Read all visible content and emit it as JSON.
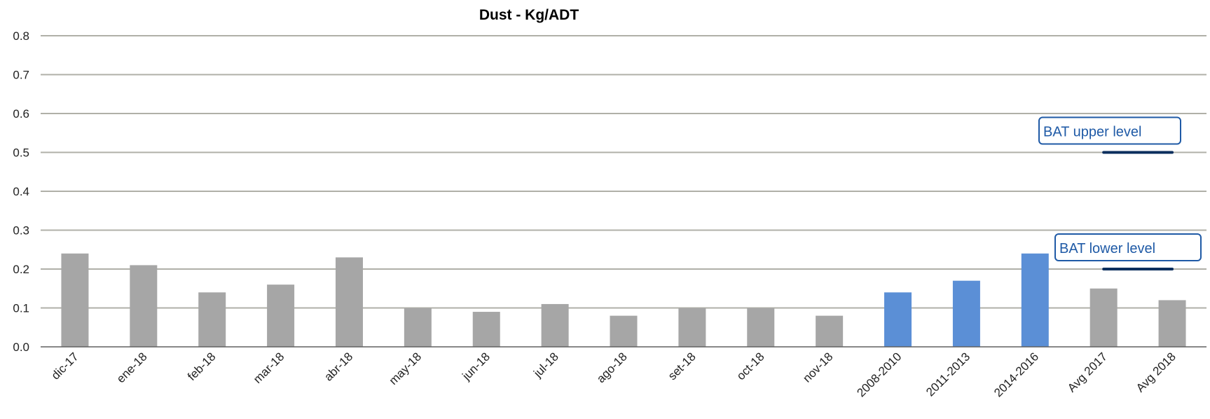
{
  "chart_data": {
    "type": "bar",
    "title": "Dust - Kg/ADT",
    "categories": [
      "dic-17",
      "ene-18",
      "feb-18",
      "mar-18",
      "abr-18",
      "may-18",
      "jun-18",
      "jul-18",
      "ago-18",
      "set-18",
      "oct-18",
      "nov-18",
      "2008-2010",
      "2011-2013",
      "2014-2016",
      "Avg 2017",
      "Avg 2018"
    ],
    "values": [
      0.24,
      0.21,
      0.14,
      0.16,
      0.23,
      0.1,
      0.09,
      0.11,
      0.08,
      0.1,
      0.1,
      0.08,
      0.14,
      0.17,
      0.24,
      0.15,
      0.12
    ],
    "bar_colors": [
      "#a6a6a6",
      "#a6a6a6",
      "#a6a6a6",
      "#a6a6a6",
      "#a6a6a6",
      "#a6a6a6",
      "#a6a6a6",
      "#a6a6a6",
      "#a6a6a6",
      "#a6a6a6",
      "#a6a6a6",
      "#a6a6a6",
      "#5b8fd6",
      "#5b8fd6",
      "#5b8fd6",
      "#a6a6a6",
      "#a6a6a6"
    ],
    "ylim": [
      0,
      0.8
    ],
    "yticks": [
      "0.0",
      "0.1",
      "0.2",
      "0.3",
      "0.4",
      "0.5",
      "0.6",
      "0.7",
      "0.8"
    ],
    "grid": true,
    "reference_lines": [
      {
        "label": "BAT upper level",
        "value": 0.5,
        "categories": [
          "Avg 2017",
          "Avg 2018"
        ],
        "color": "#0c2f5e"
      },
      {
        "label": "BAT lower level",
        "value": 0.2,
        "categories": [
          "Avg 2017",
          "Avg 2018"
        ],
        "color": "#0c2f5e"
      }
    ]
  }
}
